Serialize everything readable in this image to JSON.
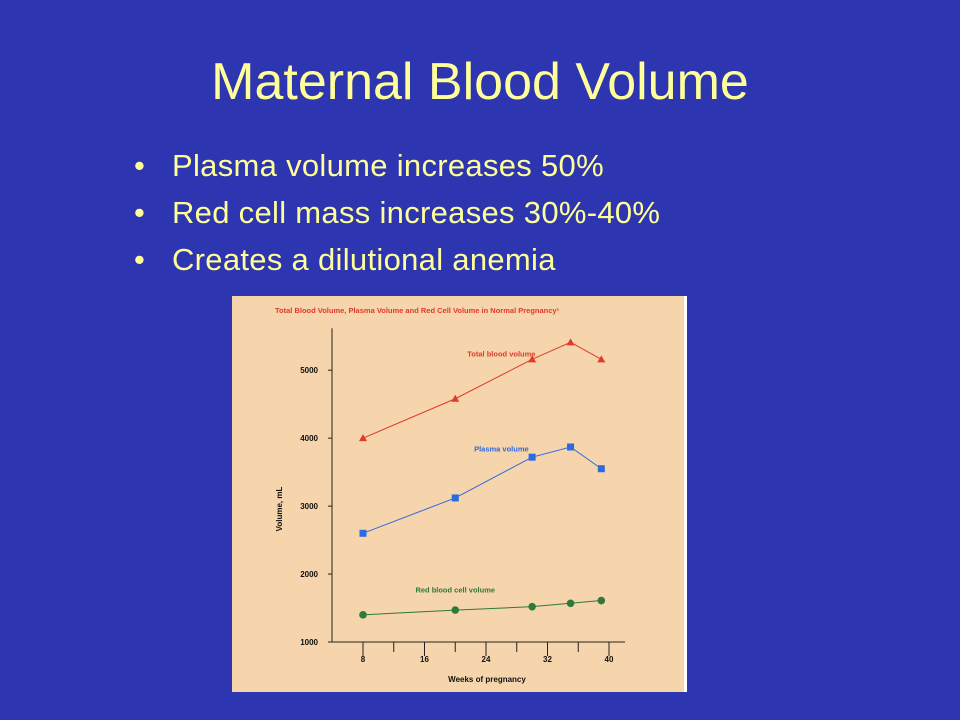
{
  "slide": {
    "title": "Maternal Blood Volume",
    "bullets": [
      "Plasma volume increases 50%",
      "Red cell mass increases 30%-40%",
      "Creates a dilutional anemia"
    ]
  },
  "chart_data": {
    "type": "line",
    "title": "Total Blood Volume, Plasma Volume and Red Cell Volume in Normal Pregnancy¹",
    "xlabel": "Weeks of pregnancy",
    "ylabel": "Volume, mL",
    "xlim": [
      8,
      40
    ],
    "ylim": [
      1000,
      5500
    ],
    "x_ticks": [
      8,
      16,
      24,
      32,
      40
    ],
    "y_ticks": [
      1000,
      2000,
      3000,
      4000,
      5000
    ],
    "grid": false,
    "series": [
      {
        "name": "Total blood volume",
        "color": "#e03a2a",
        "marker": "triangle",
        "x": [
          8,
          20,
          30,
          35,
          39
        ],
        "y": [
          4000,
          4580,
          5160,
          5410,
          5160
        ]
      },
      {
        "name": "Plasma volume",
        "color": "#2b6ae0",
        "marker": "square",
        "x": [
          8,
          20,
          30,
          35,
          39
        ],
        "y": [
          2600,
          3120,
          3720,
          3870,
          3550
        ]
      },
      {
        "name": "Red blood cell volume",
        "color": "#2e7a3a",
        "marker": "circle",
        "x": [
          8,
          20,
          30,
          35,
          39
        ],
        "y": [
          1400,
          1470,
          1520,
          1570,
          1610
        ]
      }
    ]
  }
}
